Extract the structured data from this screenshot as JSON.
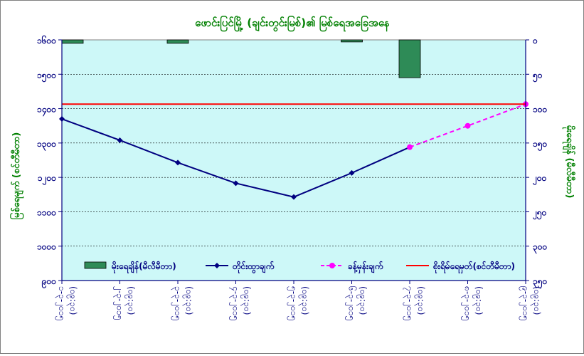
{
  "chart_data": {
    "type": "bar+line",
    "title": "ဖောင်းပြင်မြို့ (ချင်းတွင်းမြစ်)၏ မြစ်ရေအခြေအနေ",
    "ylabel_left": "မြစ်ရေမျက် (စင်တီမီတာ)",
    "ylabel_right": "မိုးရေချိန် (မီလီမီတာ)",
    "left_axis": {
      "ylim": [
        900,
        1600
      ],
      "ticks": [
        900,
        1000,
        1100,
        1200,
        1300,
        1400,
        1500,
        1600
      ],
      "tick_labels": [
        "၉၀၀",
        "၁၀၀၀",
        "၁၁၀၀",
        "၁၂၀၀",
        "၁၃၀၀",
        "၁၄၀၀",
        "၁၅၀၀",
        "၁၆၀၀"
      ]
    },
    "right_axis": {
      "ylim": [
        0,
        350
      ],
      "inverted": true,
      "ticks": [
        0,
        50,
        100,
        150,
        200,
        250,
        300,
        350
      ],
      "tick_labels": [
        "၀",
        "၅၀",
        "၁၀၀",
        "၁၅၀",
        "၂၀၀",
        "၂၅၀",
        "၃၀၀",
        "၃၅၀"
      ]
    },
    "categories": [
      [
        "၁-၃-၂၀၁၅",
        "(၀၉:၃၀)"
      ],
      [
        "၂-၃-၂၀၁၅",
        "(၀၉:၃၀)"
      ],
      [
        "၃-၃-၂၀၁၅",
        "(၀၉:၃၀)"
      ],
      [
        "၄-၃-၂၀၁၅",
        "(၀၉:၃၀)"
      ],
      [
        "၅-၃-၂၀၁၅",
        "(၀၉:၃၀)"
      ],
      [
        "၆-၃-၂၀၁၅",
        "(၀၉:၃၀)"
      ],
      [
        "၇-၃-၂၀၁၅",
        "(၀၉:၃၀)"
      ],
      [
        "၈-၃-၂၀၁၅",
        "(၀၉:၃၀)"
      ],
      [
        "၉-၃-၂၀၁၅",
        "(၀၉:၃၀)"
      ]
    ],
    "series": [
      {
        "name": "မိုးရေချိန်(မီလီမီတာ)",
        "type": "bar",
        "axis": "right",
        "color": "#2e8b57",
        "values": [
          5,
          null,
          5,
          null,
          null,
          3,
          55,
          null,
          null
        ]
      },
      {
        "name": "တိုင်းထွာချက်",
        "type": "line",
        "axis": "left",
        "color": "#000080",
        "marker": "diamond",
        "values": [
          1370,
          1308,
          1243,
          1183,
          1143,
          1213,
          1288,
          null,
          null
        ]
      },
      {
        "name": "ခန့်မှန်းချက်",
        "type": "line",
        "axis": "left",
        "color": "#ff00ff",
        "dashed": true,
        "marker": "circle",
        "values": [
          null,
          null,
          null,
          null,
          null,
          null,
          1288,
          1350,
          1413
        ]
      },
      {
        "name": "စိုးရိမ်ရေမှတ်(စင်တီမီတာ)",
        "type": "hline",
        "axis": "left",
        "color": "#ff0000",
        "value": 1413
      }
    ],
    "grid": true,
    "legend": "bottom-inside",
    "plot_background": "#cdf8f8"
  }
}
